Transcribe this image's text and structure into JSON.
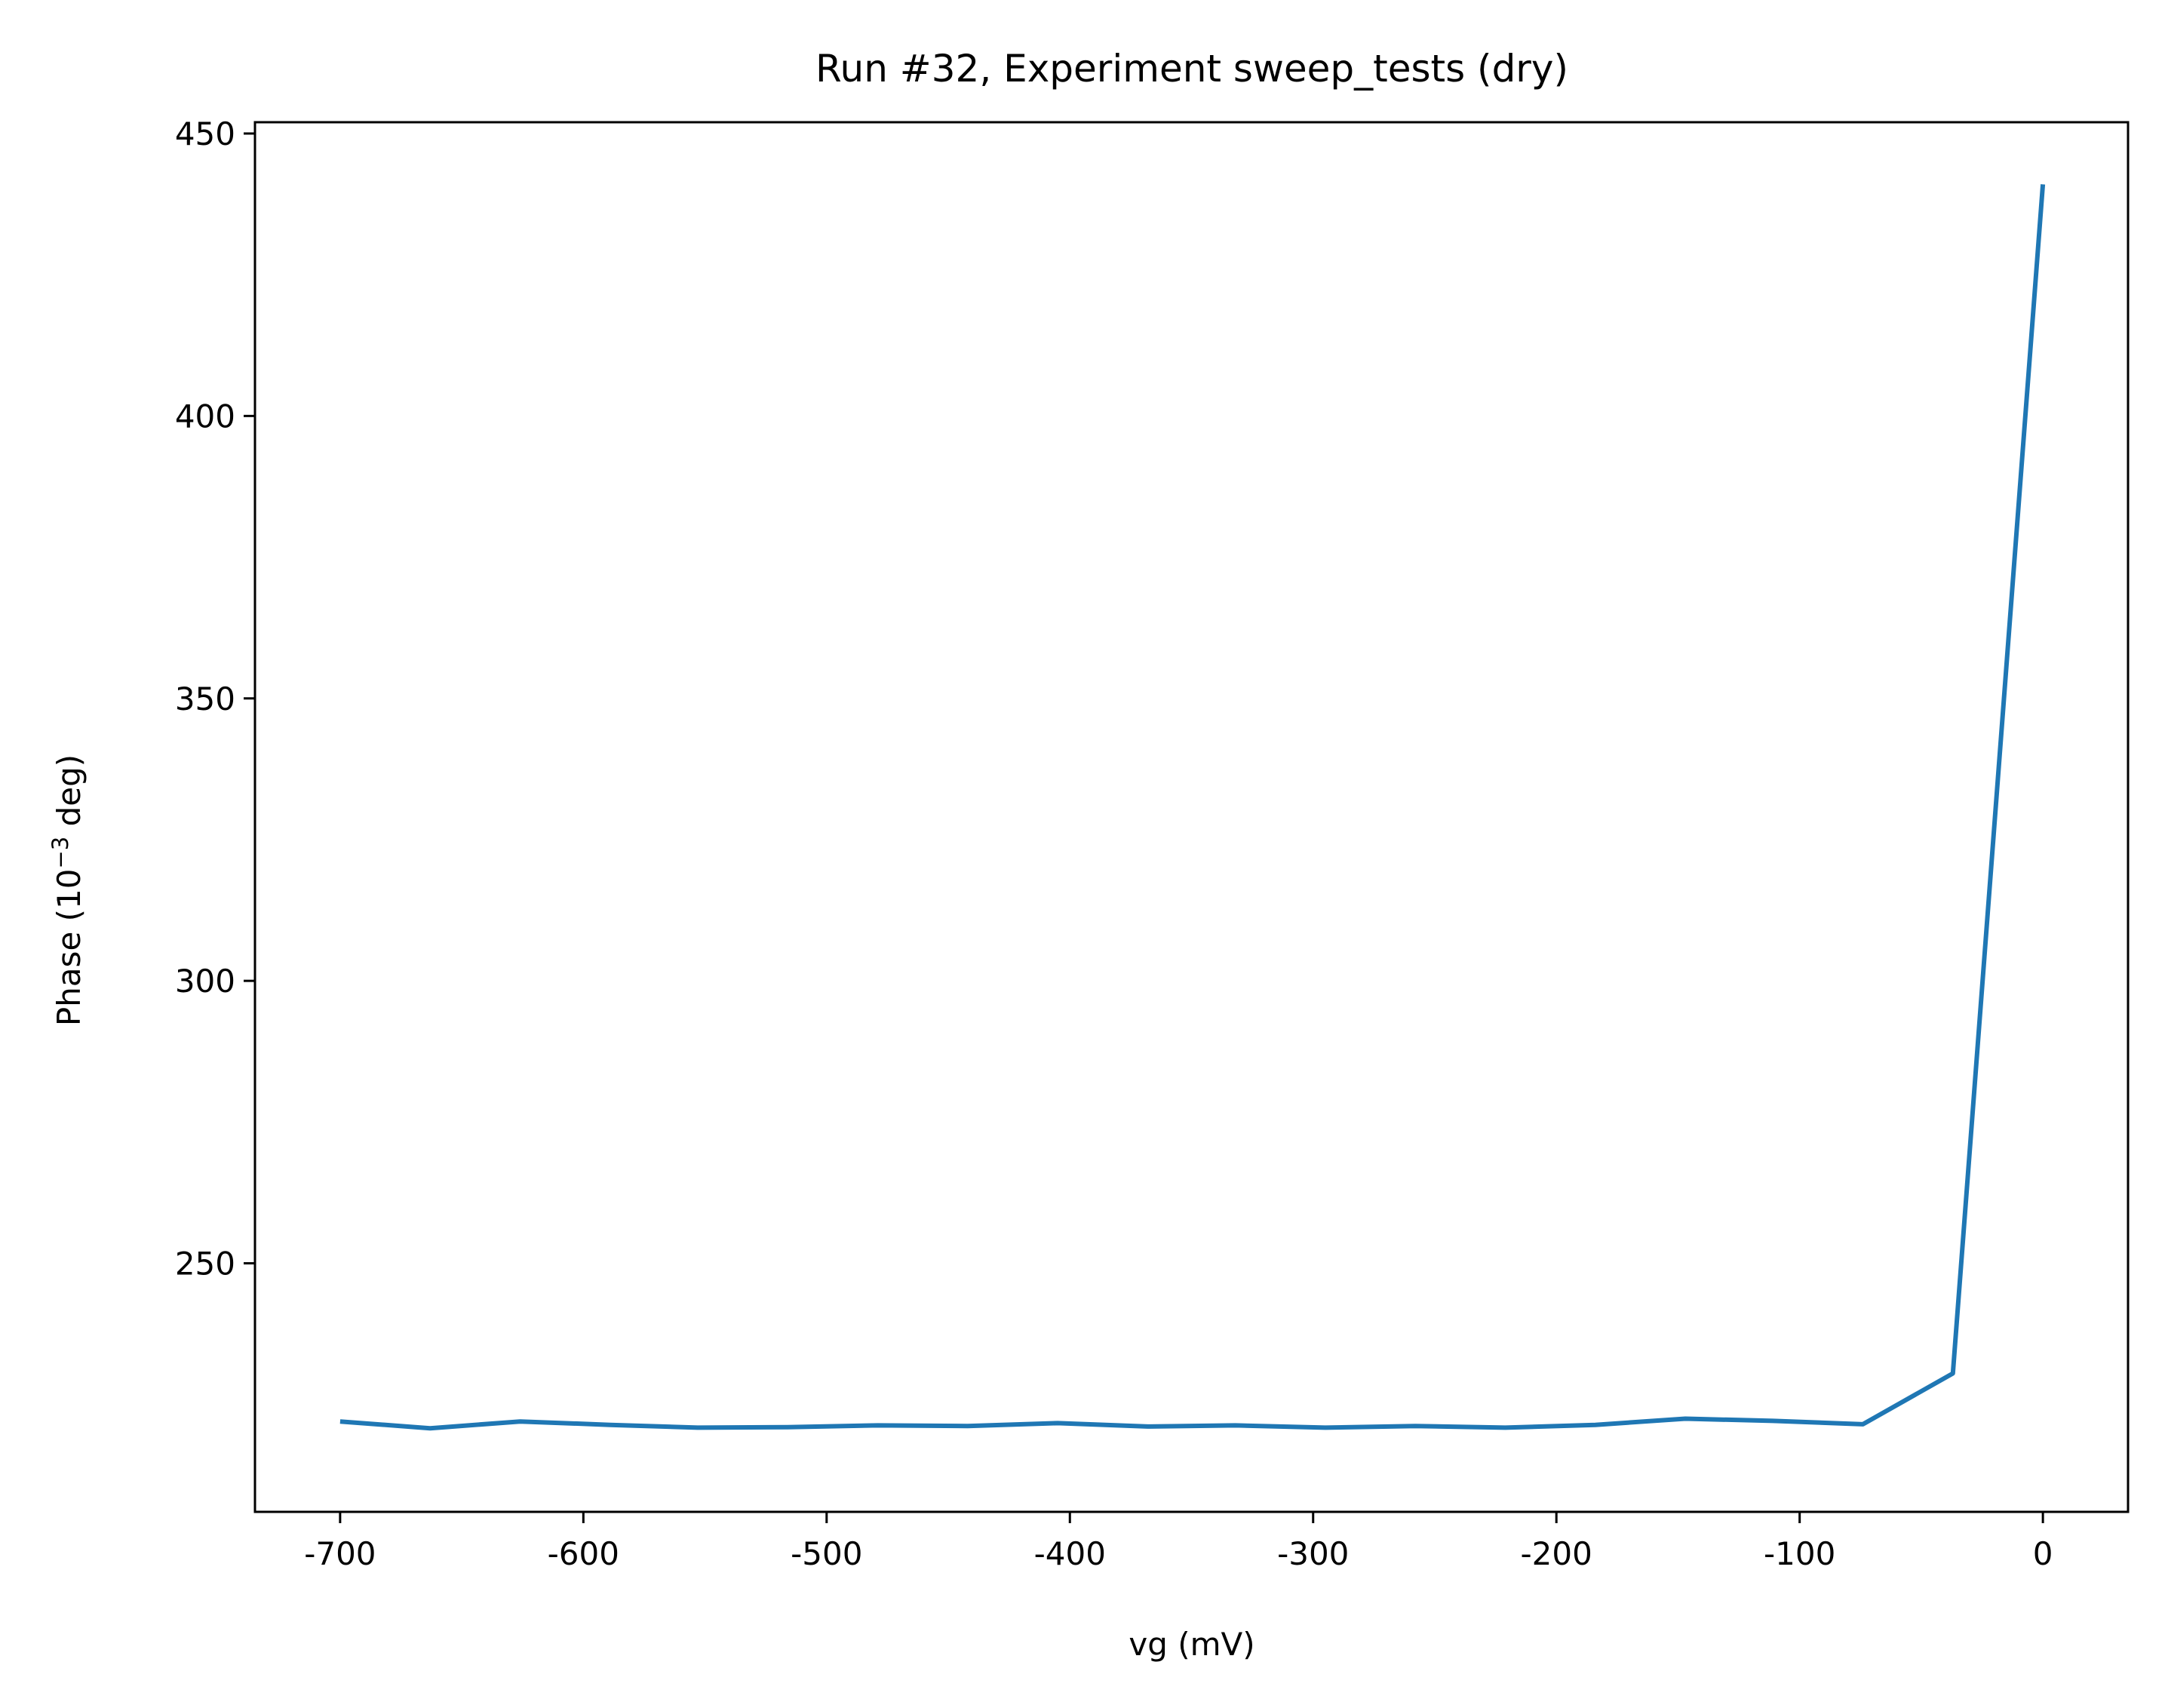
{
  "chart_data": {
    "type": "line",
    "title": "Run #32, Experiment sweep_tests (dry)",
    "xlabel": "vg (mV)",
    "ylabel_main": "Phase (10",
    "ylabel_sup": "−3",
    "ylabel_end": " deg)",
    "xlim": [
      -735,
      35
    ],
    "ylim": [
      206,
      452
    ],
    "grid": false,
    "x_ticks": [
      -700,
      -600,
      -500,
      -400,
      -300,
      -200,
      -100,
      0
    ],
    "x_tick_labels": [
      "-700",
      "-600",
      "-500",
      "-400",
      "-300",
      "-200",
      "-100",
      "0"
    ],
    "y_ticks": [
      250,
      300,
      350,
      400,
      450
    ],
    "y_tick_labels": [
      "250",
      "300",
      "350",
      "400",
      "450"
    ],
    "series": [
      {
        "color": "#1f77b4",
        "x": [
          -700,
          -663,
          -626,
          -589,
          -553,
          -516,
          -479,
          -442,
          -405,
          -368,
          -332,
          -295,
          -258,
          -221,
          -184,
          -147,
          -111,
          -74,
          -37,
          0
        ],
        "y": [
          222.0,
          220.8,
          222.0,
          221.4,
          220.9,
          221.0,
          221.3,
          221.2,
          221.7,
          221.1,
          221.3,
          220.9,
          221.2,
          220.9,
          221.4,
          222.5,
          222.1,
          221.5,
          230.5,
          441.0
        ]
      }
    ]
  }
}
